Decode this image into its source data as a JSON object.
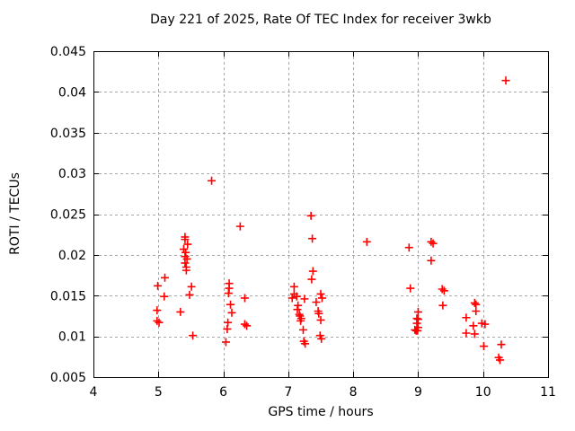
{
  "window": {
    "background": "#ffffff"
  },
  "colors": {
    "point": "#ff0000",
    "grid": "#a8a8a8",
    "axis": "#000000",
    "text": "#000000"
  },
  "chart_data": {
    "type": "scatter",
    "title": "Day 221 of 2025, Rate Of TEC Index for receiver 3wkb",
    "xlabel": "GPS time / hours",
    "ylabel": "ROTI / TECUs",
    "xlim": [
      4,
      11
    ],
    "ylim": [
      0.005,
      0.045
    ],
    "grid": true,
    "legend": "none",
    "marker": "plus",
    "x_ticks": [
      {
        "label": "4",
        "value": 4
      },
      {
        "label": "5",
        "value": 5
      },
      {
        "label": "6",
        "value": 6
      },
      {
        "label": "7",
        "value": 7
      },
      {
        "label": "8",
        "value": 8
      },
      {
        "label": "9",
        "value": 9
      },
      {
        "label": "10",
        "value": 10
      },
      {
        "label": "11",
        "value": 11
      }
    ],
    "y_ticks": [
      {
        "label": "0.005",
        "value": 0.005
      },
      {
        "label": "0.01",
        "value": 0.01
      },
      {
        "label": "0.015",
        "value": 0.015
      },
      {
        "label": "0.02",
        "value": 0.02
      },
      {
        "label": "0.025",
        "value": 0.025
      },
      {
        "label": "0.03",
        "value": 0.03
      },
      {
        "label": "0.035",
        "value": 0.035
      },
      {
        "label": "0.04",
        "value": 0.04
      },
      {
        "label": "0.045",
        "value": 0.045
      }
    ],
    "series": [
      {
        "name": "ROTI",
        "points": [
          [
            4.98,
            0.0132
          ],
          [
            4.98,
            0.0119
          ],
          [
            4.99,
            0.0162
          ],
          [
            5.01,
            0.0117
          ],
          [
            5.09,
            0.0149
          ],
          [
            5.1,
            0.0172
          ],
          [
            5.34,
            0.013
          ],
          [
            5.39,
            0.0207
          ],
          [
            5.41,
            0.0222
          ],
          [
            5.41,
            0.0219
          ],
          [
            5.41,
            0.0198
          ],
          [
            5.41,
            0.019
          ],
          [
            5.42,
            0.0203
          ],
          [
            5.43,
            0.0181
          ],
          [
            5.43,
            0.0185
          ],
          [
            5.44,
            0.0195
          ],
          [
            5.45,
            0.0213
          ],
          [
            5.48,
            0.0151
          ],
          [
            5.51,
            0.0161
          ],
          [
            5.53,
            0.0101
          ],
          [
            5.82,
            0.0291
          ],
          [
            6.04,
            0.0093
          ],
          [
            6.06,
            0.0109
          ],
          [
            6.07,
            0.0117
          ],
          [
            6.08,
            0.0153
          ],
          [
            6.09,
            0.0165
          ],
          [
            6.09,
            0.0159
          ],
          [
            6.11,
            0.0139
          ],
          [
            6.13,
            0.0129
          ],
          [
            6.26,
            0.0235
          ],
          [
            6.33,
            0.0147
          ],
          [
            6.33,
            0.0115
          ],
          [
            6.36,
            0.0113
          ],
          [
            7.06,
            0.0147
          ],
          [
            7.09,
            0.0161
          ],
          [
            7.09,
            0.0152
          ],
          [
            7.13,
            0.0149
          ],
          [
            7.14,
            0.0133
          ],
          [
            7.15,
            0.0138
          ],
          [
            7.17,
            0.0127
          ],
          [
            7.18,
            0.0125
          ],
          [
            7.19,
            0.0119
          ],
          [
            7.2,
            0.0122
          ],
          [
            7.23,
            0.0108
          ],
          [
            7.24,
            0.0094
          ],
          [
            7.26,
            0.0091
          ],
          [
            7.25,
            0.0146
          ],
          [
            7.35,
            0.0248
          ],
          [
            7.36,
            0.017
          ],
          [
            7.37,
            0.022
          ],
          [
            7.38,
            0.018
          ],
          [
            7.43,
            0.0142
          ],
          [
            7.46,
            0.0131
          ],
          [
            7.47,
            0.0128
          ],
          [
            7.49,
            0.0101
          ],
          [
            7.5,
            0.0152
          ],
          [
            7.5,
            0.012
          ],
          [
            7.51,
            0.0097
          ],
          [
            7.52,
            0.0147
          ],
          [
            8.21,
            0.0216
          ],
          [
            8.86,
            0.0209
          ],
          [
            8.88,
            0.0159
          ],
          [
            8.95,
            0.0108
          ],
          [
            8.97,
            0.0107
          ],
          [
            8.98,
            0.0122
          ],
          [
            8.98,
            0.0116
          ],
          [
            8.99,
            0.0107
          ],
          [
            9.0,
            0.013
          ],
          [
            9.0,
            0.0121
          ],
          [
            9.0,
            0.0111
          ],
          [
            9.2,
            0.0216
          ],
          [
            9.23,
            0.0214
          ],
          [
            9.2,
            0.0193
          ],
          [
            9.37,
            0.0158
          ],
          [
            9.4,
            0.0156
          ],
          [
            9.38,
            0.0138
          ],
          [
            9.74,
            0.0123
          ],
          [
            9.74,
            0.0104
          ],
          [
            9.85,
            0.0113
          ],
          [
            9.87,
            0.0141
          ],
          [
            9.87,
            0.0103
          ],
          [
            9.89,
            0.0139
          ],
          [
            9.89,
            0.0131
          ],
          [
            9.98,
            0.0116
          ],
          [
            10.01,
            0.0088
          ],
          [
            10.03,
            0.0115
          ],
          [
            10.24,
            0.0074
          ],
          [
            10.26,
            0.0071
          ],
          [
            10.28,
            0.009
          ],
          [
            10.35,
            0.0414
          ]
        ]
      }
    ]
  }
}
